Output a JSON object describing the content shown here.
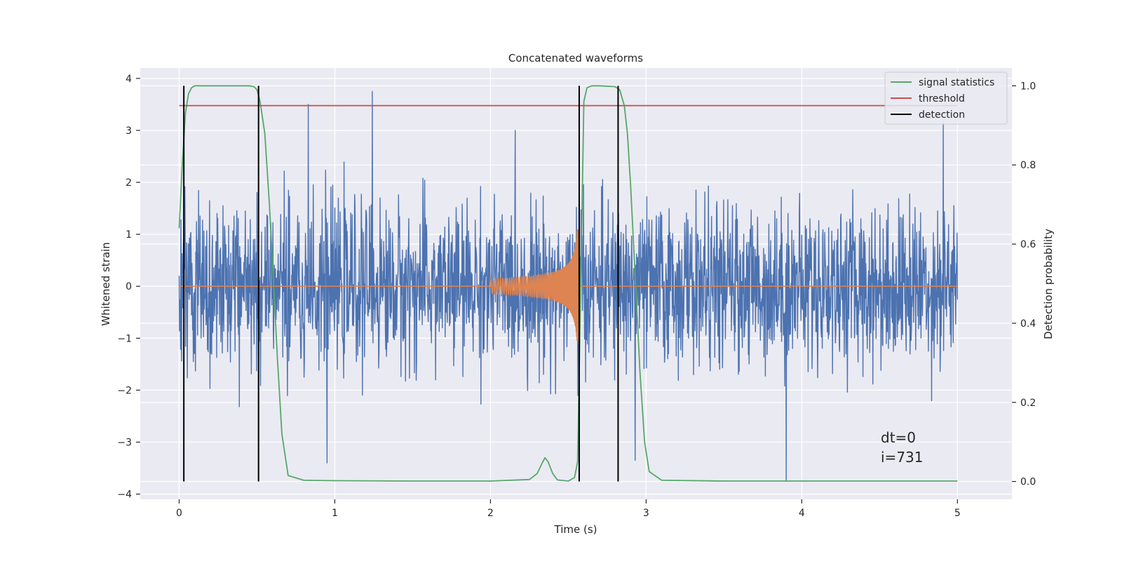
{
  "chart_data": {
    "type": "line",
    "title": "Concatenated waveforms",
    "xlabel": "Time (s)",
    "ylabel": "Whitened strain",
    "y2label": "Detection probability",
    "xlim": [
      -0.25,
      5.35
    ],
    "ylim": [
      -4.1,
      4.2
    ],
    "y2lim": [
      -0.045,
      1.045
    ],
    "xticks": [
      0,
      1,
      2,
      3,
      4,
      5
    ],
    "yticks": [
      -4,
      -3,
      -2,
      -1,
      0,
      1,
      2,
      3,
      4
    ],
    "y2ticks": [
      0.0,
      0.2,
      0.4,
      0.6,
      0.8,
      1.0
    ],
    "y2tick_labels": [
      "0.0",
      "0.2",
      "0.4",
      "0.6",
      "0.8",
      "1.0"
    ],
    "grid": true,
    "legend_position": "top-right",
    "strain": {
      "time_range": [
        0,
        5
      ],
      "noise_std": 0.75,
      "spikes": [
        {
          "x": 0.83,
          "y": 3.5
        },
        {
          "x": 1.24,
          "y": 3.75
        },
        {
          "x": 2.93,
          "y": -3.35
        },
        {
          "x": 3.9,
          "y": -3.75
        },
        {
          "x": 4.91,
          "y": 3.15
        },
        {
          "x": 0.95,
          "y": -3.4
        }
      ]
    },
    "injection": {
      "start": 2.0,
      "end": 2.57,
      "peak_amplitude": 1.1,
      "start_amplitude": 0.14
    },
    "series": [
      {
        "name": "signal statistics",
        "color": "#55a868",
        "x": [
          0,
          0.02,
          0.04,
          0.06,
          0.08,
          0.1,
          0.15,
          0.3,
          0.45,
          0.48,
          0.5,
          0.52,
          0.55,
          0.58,
          0.6,
          0.63,
          0.66,
          0.7,
          0.8,
          1.0,
          1.5,
          2.0,
          2.25,
          2.3,
          2.33,
          2.35,
          2.37,
          2.4,
          2.43,
          2.5,
          2.54,
          2.56,
          2.58,
          2.6,
          2.62,
          2.65,
          2.7,
          2.8,
          2.83,
          2.86,
          2.88,
          2.9,
          2.93,
          2.96,
          2.99,
          3.02,
          3.1,
          3.5,
          4.0,
          4.5,
          5.0
        ],
        "y": [
          0.64,
          0.8,
          0.93,
          0.98,
          0.995,
          1.0,
          1.0,
          1.0,
          1.0,
          0.998,
          0.99,
          0.96,
          0.88,
          0.7,
          0.55,
          0.32,
          0.12,
          0.015,
          0.003,
          0.002,
          0.001,
          0.001,
          0.005,
          0.02,
          0.045,
          0.06,
          0.05,
          0.02,
          0.004,
          0.001,
          0.01,
          0.05,
          0.5,
          0.96,
          0.995,
          1.0,
          1.0,
          0.998,
          0.99,
          0.95,
          0.88,
          0.75,
          0.52,
          0.28,
          0.1,
          0.025,
          0.003,
          0.001,
          0.001,
          0.001,
          0.001
        ]
      },
      {
        "name": "threshold",
        "color": "#c44e52",
        "x": [
          0,
          5
        ],
        "y": [
          0.95,
          0.95
        ]
      }
    ],
    "detections": {
      "name": "detection",
      "color": "#000000",
      "x": [
        0.03,
        0.51,
        2.57,
        2.82
      ]
    },
    "colors": {
      "strain": "#4c72b0",
      "injection": "#dd8452",
      "background": "#eaeaf2",
      "grid": "#ffffff"
    },
    "annotations": [
      "dt=0",
      "i=731"
    ]
  }
}
